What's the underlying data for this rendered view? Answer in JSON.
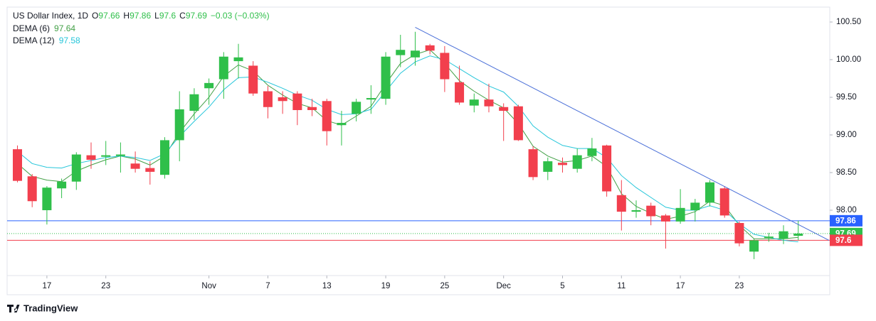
{
  "chart_data": {
    "type": "candlestick",
    "title": "US Dollar Index, 1D",
    "ohlc_labels": [
      "O",
      "H",
      "L",
      "C"
    ],
    "change_label": "−0.03 (−0.03%)",
    "up_color": "#2fbf4a",
    "down_color": "#f23f4d",
    "x": [
      0,
      1,
      2,
      3,
      4,
      5,
      6,
      7,
      8,
      9,
      10,
      11,
      12,
      13,
      14,
      15,
      16,
      17,
      18,
      19,
      20,
      21,
      22,
      23,
      24,
      25,
      26,
      27,
      28,
      29,
      30,
      31,
      32,
      33,
      34,
      35,
      36,
      37,
      38,
      39,
      40,
      41,
      42,
      43,
      44,
      45,
      46,
      47,
      48,
      49,
      50,
      51,
      52,
      53
    ],
    "open": [
      98.81,
      98.45,
      98.0,
      98.29,
      98.38,
      98.73,
      98.71,
      98.72,
      98.62,
      98.56,
      98.47,
      98.93,
      99.32,
      99.62,
      99.74,
      99.98,
      99.92,
      99.58,
      99.5,
      99.55,
      99.37,
      99.45,
      99.13,
      99.28,
      99.47,
      99.48,
      100.06,
      100.03,
      100.19,
      100.09,
      99.7,
      99.39,
      99.47,
      99.37,
      99.38,
      98.81,
      98.51,
      98.63,
      98.55,
      98.72,
      98.86,
      98.2,
      97.98,
      98.06,
      97.93,
      97.85,
      98.0,
      98.1,
      98.29,
      97.83,
      97.45,
      97.63,
      97.62,
      97.66
    ],
    "high": [
      98.86,
      98.48,
      98.32,
      98.42,
      98.77,
      98.9,
      98.92,
      98.9,
      98.78,
      98.65,
      98.97,
      99.58,
      99.62,
      99.75,
      100.1,
      100.21,
      99.98,
      99.65,
      99.58,
      99.58,
      99.48,
      99.48,
      99.32,
      99.48,
      99.66,
      100.1,
      100.33,
      100.37,
      100.21,
      100.18,
      99.92,
      99.55,
      99.68,
      99.42,
      99.4,
      98.85,
      98.7,
      98.7,
      98.82,
      98.96,
      98.87,
      98.4,
      98.13,
      98.1,
      97.95,
      98.28,
      98.15,
      98.4,
      98.32,
      97.85,
      97.62,
      97.7,
      97.8,
      97.86
    ],
    "low": [
      98.37,
      98.04,
      97.81,
      98.16,
      98.27,
      98.55,
      98.6,
      98.5,
      98.5,
      98.34,
      98.42,
      98.65,
      99.2,
      99.4,
      99.48,
      99.75,
      99.52,
      99.22,
      99.28,
      99.13,
      99.25,
      98.86,
      98.86,
      99.18,
      99.28,
      99.4,
      99.9,
      99.92,
      100.07,
      99.57,
      99.4,
      99.3,
      99.3,
      98.92,
      98.92,
      98.4,
      98.4,
      98.5,
      98.5,
      98.65,
      98.18,
      97.73,
      97.9,
      97.8,
      97.49,
      97.82,
      97.85,
      98.05,
      97.9,
      97.52,
      97.35,
      97.58,
      97.55,
      97.6
    ],
    "close": [
      98.39,
      98.12,
      98.3,
      98.38,
      98.74,
      98.67,
      98.73,
      98.74,
      98.55,
      98.51,
      98.93,
      99.34,
      99.54,
      99.69,
      100.04,
      100.03,
      99.55,
      99.37,
      99.45,
      99.33,
      99.33,
      99.05,
      99.16,
      99.44,
      99.49,
      100.04,
      100.13,
      100.12,
      100.12,
      99.74,
      99.43,
      99.47,
      99.38,
      99.32,
      98.93,
      98.44,
      98.65,
      98.6,
      98.73,
      98.82,
      98.25,
      97.98,
      98.0,
      97.92,
      97.85,
      98.03,
      98.1,
      98.37,
      97.93,
      97.56,
      97.6,
      97.65,
      97.72,
      97.69
    ],
    "series": [
      {
        "name": "DEMA (6)",
        "color": "#43a047",
        "values": [
          98.62,
          98.45,
          98.4,
          98.38,
          98.52,
          98.6,
          98.67,
          98.72,
          98.68,
          98.6,
          98.72,
          99.03,
          99.28,
          99.5,
          99.78,
          99.93,
          99.85,
          99.66,
          99.53,
          99.42,
          99.36,
          99.19,
          99.13,
          99.25,
          99.38,
          99.68,
          99.95,
          100.07,
          100.13,
          99.95,
          99.72,
          99.58,
          99.46,
          99.36,
          99.15,
          98.85,
          98.72,
          98.64,
          98.66,
          98.72,
          98.58,
          98.22,
          98.05,
          97.96,
          97.88,
          97.92,
          97.98,
          98.12,
          98.06,
          97.8,
          97.62,
          97.62,
          97.62,
          97.64
        ]
      },
      {
        "name": "DEMA (12)",
        "color": "#26c6da",
        "values": [
          98.78,
          98.62,
          98.57,
          98.56,
          98.62,
          98.66,
          98.7,
          98.72,
          98.7,
          98.66,
          98.75,
          98.98,
          99.18,
          99.37,
          99.6,
          99.76,
          99.77,
          99.7,
          99.62,
          99.53,
          99.46,
          99.34,
          99.27,
          99.28,
          99.34,
          99.58,
          99.82,
          99.97,
          100.05,
          100.0,
          99.88,
          99.76,
          99.65,
          99.57,
          99.38,
          99.12,
          98.97,
          98.86,
          98.82,
          98.82,
          98.7,
          98.46,
          98.3,
          98.17,
          98.04,
          98.0,
          98.0,
          98.06,
          98.0,
          97.82,
          97.68,
          97.64,
          97.6,
          97.58
        ]
      }
    ],
    "xlim": [
      -0.7,
      55.09
    ],
    "xticks": [
      {
        "value": 2,
        "label": "17"
      },
      {
        "value": 6,
        "label": "23"
      },
      {
        "value": 13,
        "label": "Nov"
      },
      {
        "value": 17,
        "label": "7"
      },
      {
        "value": 21,
        "label": "13"
      },
      {
        "value": 25,
        "label": "19"
      },
      {
        "value": 29,
        "label": "25"
      },
      {
        "value": 33,
        "label": "Dec"
      },
      {
        "value": 37,
        "label": "5"
      },
      {
        "value": 41,
        "label": "11"
      },
      {
        "value": 45,
        "label": "17"
      },
      {
        "value": 49,
        "label": "23"
      }
    ],
    "ylim": [
      97.132,
      100.698
    ],
    "yticks": [
      {
        "value": 98,
        "label": "98.00"
      },
      {
        "value": 98.5,
        "label": "98.50"
      },
      {
        "value": 99,
        "label": "99.00"
      },
      {
        "value": 99.5,
        "label": "99.50"
      },
      {
        "value": 100,
        "label": "100.00"
      },
      {
        "value": 100.5,
        "label": "100.50"
      }
    ],
    "price_lines": [
      {
        "value": 97.86,
        "color": "#2962ff",
        "style": "solid"
      },
      {
        "value": 97.69,
        "color": "#2fbf4a",
        "style": "dotted"
      },
      {
        "value": 97.6,
        "color": "#f23f4d",
        "style": "solid"
      }
    ],
    "trendline": {
      "x": [
        27,
        55.09
      ],
      "y": [
        100.43,
        97.6
      ],
      "color": "#4a6fd8"
    }
  },
  "footer": {
    "brand": "TradingView"
  }
}
